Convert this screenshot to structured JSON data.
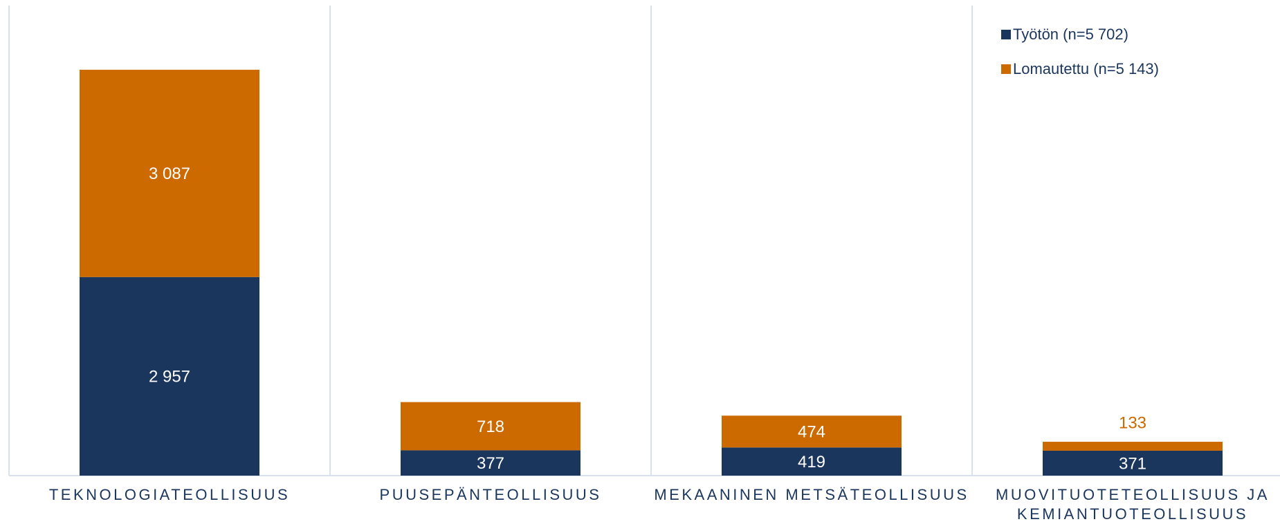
{
  "chart_data": {
    "type": "stacked_bar",
    "categories": [
      "TEKNOLOGIATEOLLISUUS",
      "PUUSEPÄNTEOLLISUUS",
      "MEKAANINEN METSÄTEOLLISUUS",
      "MUOVITUOTETEOLLISUUS JA KEMIANTUOTEOLLISUUS"
    ],
    "series": [
      {
        "name": "Työtön (n=5 702)",
        "color": "#1b365d",
        "values": [
          2957,
          377,
          419,
          371
        ],
        "value_labels": [
          "2 957",
          "377",
          "419",
          "371"
        ]
      },
      {
        "name": "Lomautettu (n=5 143)",
        "color": "#cc6a00",
        "values": [
          3087,
          718,
          474,
          133
        ],
        "value_labels": [
          "3 087",
          "718",
          "474",
          "133"
        ]
      }
    ],
    "ylim": [
      0,
      7000
    ],
    "legend": "upper right"
  }
}
